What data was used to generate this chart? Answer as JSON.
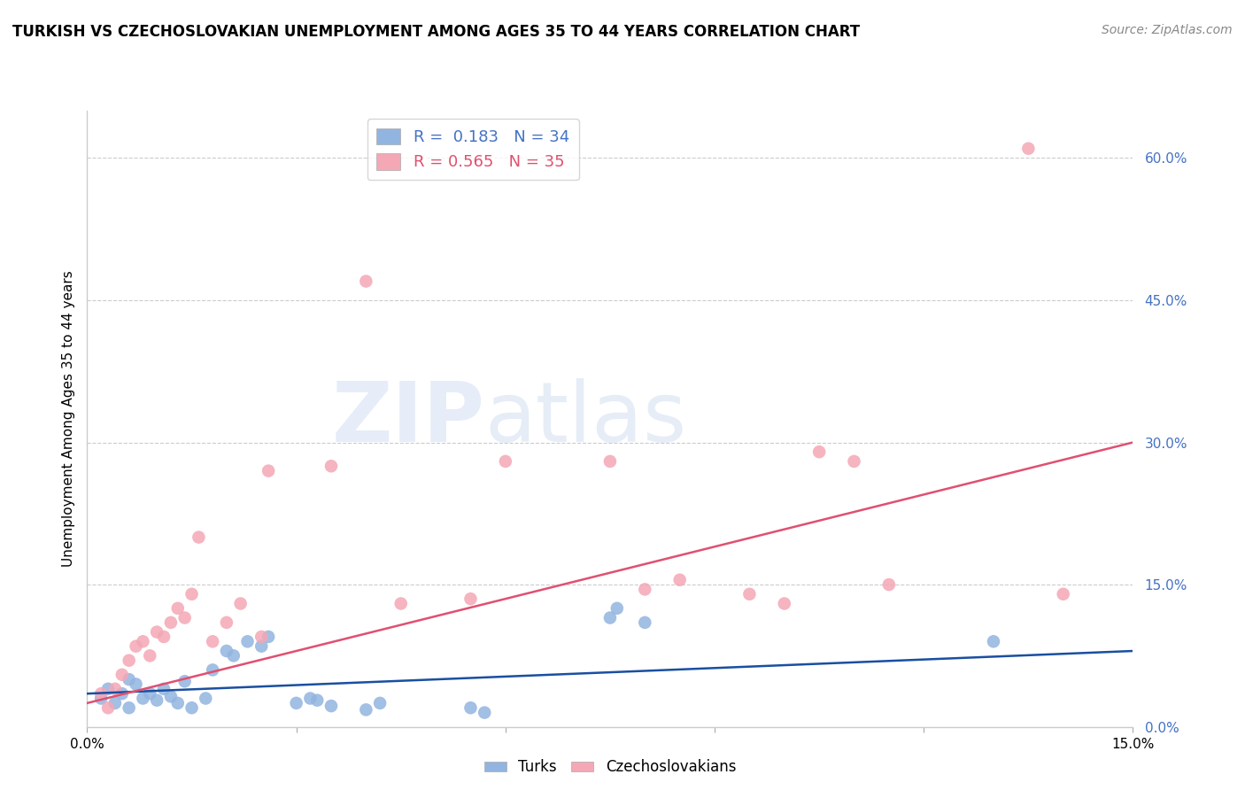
{
  "title": "TURKISH VS CZECHOSLOVAKIAN UNEMPLOYMENT AMONG AGES 35 TO 44 YEARS CORRELATION CHART",
  "source": "Source: ZipAtlas.com",
  "ylabel": "Unemployment Among Ages 35 to 44 years",
  "xlim": [
    0.0,
    15.0
  ],
  "ylim": [
    0.0,
    65.0
  ],
  "yticks": [
    0.0,
    15.0,
    30.0,
    45.0,
    60.0
  ],
  "legend_turks_R": "0.183",
  "legend_turks_N": "34",
  "legend_czech_R": "0.565",
  "legend_czech_N": "35",
  "turks_color": "#92b4e0",
  "czech_color": "#f4a7b5",
  "turks_line_color": "#1a4fa0",
  "czech_line_color": "#e05070",
  "turks_points": [
    [
      0.2,
      3.0
    ],
    [
      0.3,
      4.0
    ],
    [
      0.4,
      2.5
    ],
    [
      0.5,
      3.5
    ],
    [
      0.6,
      5.0
    ],
    [
      0.6,
      2.0
    ],
    [
      0.7,
      4.5
    ],
    [
      0.8,
      3.0
    ],
    [
      0.9,
      3.5
    ],
    [
      1.0,
      2.8
    ],
    [
      1.1,
      4.0
    ],
    [
      1.2,
      3.2
    ],
    [
      1.3,
      2.5
    ],
    [
      1.4,
      4.8
    ],
    [
      1.5,
      2.0
    ],
    [
      1.7,
      3.0
    ],
    [
      1.8,
      6.0
    ],
    [
      2.0,
      8.0
    ],
    [
      2.1,
      7.5
    ],
    [
      2.3,
      9.0
    ],
    [
      2.5,
      8.5
    ],
    [
      2.6,
      9.5
    ],
    [
      3.0,
      2.5
    ],
    [
      3.2,
      3.0
    ],
    [
      3.3,
      2.8
    ],
    [
      3.5,
      2.2
    ],
    [
      4.0,
      1.8
    ],
    [
      4.2,
      2.5
    ],
    [
      5.5,
      2.0
    ],
    [
      5.7,
      1.5
    ],
    [
      7.5,
      11.5
    ],
    [
      7.6,
      12.5
    ],
    [
      8.0,
      11.0
    ],
    [
      13.0,
      9.0
    ]
  ],
  "czech_points": [
    [
      0.2,
      3.5
    ],
    [
      0.3,
      2.0
    ],
    [
      0.4,
      4.0
    ],
    [
      0.5,
      5.5
    ],
    [
      0.6,
      7.0
    ],
    [
      0.7,
      8.5
    ],
    [
      0.8,
      9.0
    ],
    [
      0.9,
      7.5
    ],
    [
      1.0,
      10.0
    ],
    [
      1.1,
      9.5
    ],
    [
      1.2,
      11.0
    ],
    [
      1.3,
      12.5
    ],
    [
      1.4,
      11.5
    ],
    [
      1.5,
      14.0
    ],
    [
      1.6,
      20.0
    ],
    [
      1.8,
      9.0
    ],
    [
      2.0,
      11.0
    ],
    [
      2.2,
      13.0
    ],
    [
      2.5,
      9.5
    ],
    [
      2.6,
      27.0
    ],
    [
      3.5,
      27.5
    ],
    [
      4.0,
      47.0
    ],
    [
      4.5,
      13.0
    ],
    [
      5.5,
      13.5
    ],
    [
      6.0,
      28.0
    ],
    [
      7.5,
      28.0
    ],
    [
      8.0,
      14.5
    ],
    [
      8.5,
      15.5
    ],
    [
      9.5,
      14.0
    ],
    [
      10.0,
      13.0
    ],
    [
      10.5,
      29.0
    ],
    [
      11.0,
      28.0
    ],
    [
      11.5,
      15.0
    ],
    [
      13.5,
      61.0
    ],
    [
      14.0,
      14.0
    ]
  ]
}
